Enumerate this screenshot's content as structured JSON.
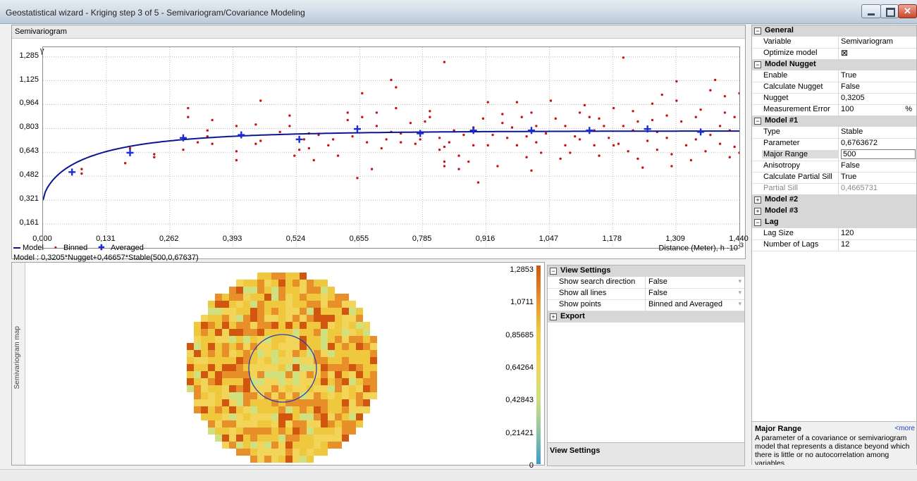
{
  "window": {
    "title": "Geostatistical wizard - Kriging step 3 of 5 - Semivariogram/Covariance Modeling"
  },
  "semivariogram": {
    "panel_title": "Semivariogram",
    "y_axis_label": "γ",
    "legend": {
      "model": "Model",
      "binned": "Binned",
      "averaged": "Averaged"
    },
    "x_axis_label": "Distance (Meter), h",
    "x_axis_unit": "·10",
    "x_axis_exp": "-3",
    "formula": "Model : 0,3205*Nugget+0,46657*Stable(500,0,67637)"
  },
  "chart_data": {
    "type": "scatter",
    "ylabel": "γ",
    "xlabel": "Distance (Meter), h ·10-3",
    "x_ticks": [
      "0,000",
      "0,131",
      "0,262",
      "0,393",
      "0,524",
      "0,655",
      "0,785",
      "0,916",
      "1,047",
      "1,178",
      "1,309",
      "1,440"
    ],
    "y_ticks": [
      "0,161",
      "0,321",
      "0,482",
      "0,643",
      "0,803",
      "0,964",
      "1,125",
      "1,285"
    ],
    "xlim": [
      0,
      1.44
    ],
    "ylim": [
      0,
      1.35
    ],
    "grid": true,
    "series": [
      {
        "name": "Model",
        "type": "line",
        "color": "#0a168f",
        "nugget": 0.3205,
        "partial_sill": 0.46657,
        "range": 0.5,
        "parameter": 0.67637
      },
      {
        "name": "Binned",
        "type": "scatter",
        "color": "#c81414",
        "points": [
          [
            0.08,
            0.5
          ],
          [
            0.08,
            0.53
          ],
          [
            0.17,
            0.57
          ],
          [
            0.18,
            0.67
          ],
          [
            0.23,
            0.61
          ],
          [
            0.23,
            0.63
          ],
          [
            0.29,
            0.66
          ],
          [
            0.3,
            0.88
          ],
          [
            0.3,
            0.94
          ],
          [
            0.32,
            0.71
          ],
          [
            0.34,
            0.79
          ],
          [
            0.34,
            0.75
          ],
          [
            0.35,
            0.86
          ],
          [
            0.35,
            0.7
          ],
          [
            0.4,
            0.82
          ],
          [
            0.4,
            0.59
          ],
          [
            0.4,
            0.65
          ],
          [
            0.44,
            0.7
          ],
          [
            0.44,
            0.83
          ],
          [
            0.45,
            0.72
          ],
          [
            0.45,
            0.99
          ],
          [
            0.49,
            0.78
          ],
          [
            0.51,
            0.89
          ],
          [
            0.51,
            0.82
          ],
          [
            0.52,
            0.62
          ],
          [
            0.53,
            0.66
          ],
          [
            0.54,
            0.73
          ],
          [
            0.55,
            0.77
          ],
          [
            0.55,
            0.67
          ],
          [
            0.56,
            0.59
          ],
          [
            0.57,
            0.76
          ],
          [
            0.59,
            0.69
          ],
          [
            0.6,
            0.73
          ],
          [
            0.61,
            0.62
          ],
          [
            0.63,
            0.91
          ],
          [
            0.63,
            0.86
          ],
          [
            0.64,
            0.75
          ],
          [
            0.65,
            0.47
          ],
          [
            0.66,
            0.88
          ],
          [
            0.66,
            1.04
          ],
          [
            0.67,
            0.71
          ],
          [
            0.68,
            0.53
          ],
          [
            0.69,
            0.91
          ],
          [
            0.69,
            0.82
          ],
          [
            0.7,
            0.67
          ],
          [
            0.71,
            0.73
          ],
          [
            0.72,
            0.78
          ],
          [
            0.72,
            1.13
          ],
          [
            0.73,
            1.08
          ],
          [
            0.73,
            0.94
          ],
          [
            0.74,
            0.71
          ],
          [
            0.74,
            0.77
          ],
          [
            0.76,
            0.84
          ],
          [
            0.77,
            0.7
          ],
          [
            0.78,
            0.73
          ],
          [
            0.79,
            0.85
          ],
          [
            0.8,
            0.92
          ],
          [
            0.8,
            0.88
          ],
          [
            0.82,
            0.66
          ],
          [
            0.82,
            0.74
          ],
          [
            0.83,
            0.68
          ],
          [
            0.83,
            0.58
          ],
          [
            0.83,
            0.55
          ],
          [
            0.83,
            1.25
          ],
          [
            0.84,
            0.71
          ],
          [
            0.85,
            0.79
          ],
          [
            0.86,
            0.62
          ],
          [
            0.86,
            0.53
          ],
          [
            0.87,
            0.76
          ],
          [
            0.88,
            0.58
          ],
          [
            0.89,
            0.69
          ],
          [
            0.89,
            0.81
          ],
          [
            0.9,
            0.44
          ],
          [
            0.91,
            0.87
          ],
          [
            0.92,
            0.98
          ],
          [
            0.92,
            0.69
          ],
          [
            0.93,
            0.76
          ],
          [
            0.94,
            0.55
          ],
          [
            0.95,
            0.84
          ],
          [
            0.95,
            0.9
          ],
          [
            0.96,
            0.74
          ],
          [
            0.97,
            0.81
          ],
          [
            0.98,
            0.98
          ],
          [
            0.98,
            0.69
          ],
          [
            0.99,
            0.88
          ],
          [
            1.0,
            0.61
          ],
          [
            1.0,
            0.75
          ],
          [
            1.01,
            0.91
          ],
          [
            1.01,
            0.52
          ],
          [
            1.02,
            0.82
          ],
          [
            1.02,
            0.71
          ],
          [
            1.03,
            0.64
          ],
          [
            1.04,
            0.77
          ],
          [
            1.05,
            0.99
          ],
          [
            1.06,
            0.87
          ],
          [
            1.07,
            0.6
          ],
          [
            1.08,
            0.69
          ],
          [
            1.08,
            0.82
          ],
          [
            1.09,
            0.64
          ],
          [
            1.1,
            0.75
          ],
          [
            1.11,
            0.91
          ],
          [
            1.11,
            0.73
          ],
          [
            1.12,
            0.96
          ],
          [
            1.13,
            0.88
          ],
          [
            1.14,
            0.69
          ],
          [
            1.14,
            0.79
          ],
          [
            1.15,
            0.62
          ],
          [
            1.15,
            0.87
          ],
          [
            1.16,
            0.82
          ],
          [
            1.17,
            0.74
          ],
          [
            1.18,
            0.69
          ],
          [
            1.18,
            0.94
          ],
          [
            1.19,
            0.7
          ],
          [
            1.2,
            0.82
          ],
          [
            1.2,
            1.28
          ],
          [
            1.21,
            0.65
          ],
          [
            1.22,
            0.92
          ],
          [
            1.22,
            0.79
          ],
          [
            1.23,
            0.6
          ],
          [
            1.23,
            0.85
          ],
          [
            1.24,
            0.54
          ],
          [
            1.25,
            0.72
          ],
          [
            1.26,
            0.86
          ],
          [
            1.26,
            0.97
          ],
          [
            1.27,
            0.66
          ],
          [
            1.27,
            0.78
          ],
          [
            1.28,
            1.03
          ],
          [
            1.29,
            0.89
          ],
          [
            1.29,
            0.74
          ],
          [
            1.3,
            0.55
          ],
          [
            1.3,
            0.63
          ],
          [
            1.31,
            1.12
          ],
          [
            1.31,
            0.99
          ],
          [
            1.32,
            0.85
          ],
          [
            1.33,
            0.69
          ],
          [
            1.34,
            0.59
          ],
          [
            1.35,
            0.73
          ],
          [
            1.35,
            0.88
          ],
          [
            1.36,
            0.93
          ],
          [
            1.37,
            0.65
          ],
          [
            1.38,
            1.06
          ],
          [
            1.38,
            0.76
          ],
          [
            1.39,
            1.13
          ],
          [
            1.4,
            0.82
          ],
          [
            1.4,
            0.7
          ],
          [
            1.41,
            0.91
          ],
          [
            1.41,
            1.02
          ],
          [
            1.42,
            0.61
          ],
          [
            1.42,
            0.79
          ],
          [
            1.43,
            0.68
          ],
          [
            1.43,
            0.88
          ],
          [
            1.44,
            1.04
          ],
          [
            1.44,
            0.64
          ]
        ]
      },
      {
        "name": "Averaged",
        "type": "scatter",
        "color": "#1b2bd8",
        "points": [
          [
            0.06,
            0.51
          ],
          [
            0.18,
            0.64
          ],
          [
            0.29,
            0.74
          ],
          [
            0.41,
            0.76
          ],
          [
            0.53,
            0.73
          ],
          [
            0.65,
            0.8
          ],
          [
            0.78,
            0.77
          ],
          [
            0.89,
            0.79
          ],
          [
            1.01,
            0.79
          ],
          [
            1.13,
            0.79
          ],
          [
            1.25,
            0.8
          ],
          [
            1.36,
            0.78
          ]
        ]
      }
    ]
  },
  "semivariogram_map": {
    "label": "Semivariogram map",
    "color_scale": [
      "1,2853",
      "1,0711",
      "0,85685",
      "0,64264",
      "0,42843",
      "0,21421",
      "0"
    ],
    "scale_colors": [
      "#d2560f",
      "#e88f2a",
      "#f0c83e",
      "#f2d558",
      "#cfe07f",
      "#8fc7a1",
      "#3c9bd1"
    ]
  },
  "view_settings": {
    "section": "View Settings",
    "rows": [
      {
        "label": "Show search direction",
        "value": "False"
      },
      {
        "label": "Show all lines",
        "value": "False"
      },
      {
        "label": "Show points",
        "value": "Binned and Averaged"
      }
    ],
    "export": "Export",
    "footer": "View Settings"
  },
  "properties": {
    "sections": [
      {
        "title": "General",
        "expanded": true,
        "rows": [
          {
            "k": "Variable",
            "v": "Semivariogram"
          },
          {
            "k": "Optimize model",
            "v": ""
          }
        ]
      },
      {
        "title": "Model Nugget",
        "expanded": true,
        "rows": [
          {
            "k": "Enable",
            "v": "True"
          },
          {
            "k": "Calculate Nugget",
            "v": "False"
          },
          {
            "k": "Nugget",
            "v": "0,3205"
          },
          {
            "k": "Measurement Error",
            "v": "100",
            "unit": "%"
          }
        ]
      },
      {
        "title": "Model #1",
        "expanded": true,
        "rows": [
          {
            "k": "Type",
            "v": "Stable"
          },
          {
            "k": "Parameter",
            "v": "0,6763672"
          },
          {
            "k": "Major Range",
            "v": "500",
            "selected": true
          },
          {
            "k": "Anisotropy",
            "v": "False"
          },
          {
            "k": "Calculate Partial Sill",
            "v": "True"
          },
          {
            "k": "Partial Sill",
            "v": "0,4665731",
            "disabled": true
          }
        ]
      },
      {
        "title": "Model #2",
        "expanded": false,
        "rows": []
      },
      {
        "title": "Model #3",
        "expanded": false,
        "rows": []
      },
      {
        "title": "Lag",
        "expanded": true,
        "rows": [
          {
            "k": "Lag Size",
            "v": "120"
          },
          {
            "k": "Number of Lags",
            "v": "12"
          }
        ]
      }
    ],
    "help_title": "Major Range",
    "help_more": "<more",
    "help_text": "A parameter of a covariance or semivariogram model that represents a distance beyond which there is little or no autocorrelation among variables."
  }
}
